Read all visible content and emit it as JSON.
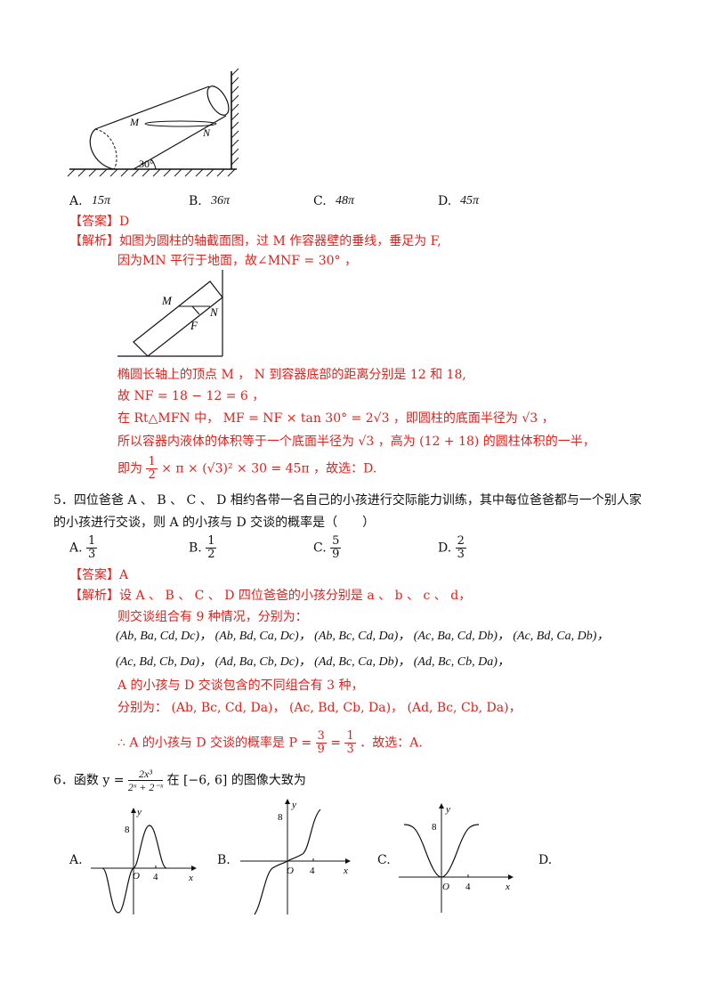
{
  "q4": {
    "options": [
      {
        "letter": "A.",
        "value": "15π"
      },
      {
        "letter": "B.",
        "value": "36π"
      },
      {
        "letter": "C.",
        "value": "48π"
      },
      {
        "letter": "D.",
        "value": "45π"
      }
    ],
    "answer_tag": "【答案】",
    "answer": "D",
    "analysis_tag": "【解析】",
    "lines": [
      "如图为圆柱的轴截面图，过 M 作容器壁的垂线，垂足为 F,",
      "因为MN 平行于地面，故∠MNF = 30° ，",
      "椭圆长轴上的顶点 M ， N 到容器底部的距离分别是 12 和 18,",
      "故 NF = 18 − 12 = 6 ，",
      "在 Rt△MFN 中， MF = NF × tan 30° = 2√3 ，即圆柱的底面半径为 √3 ，",
      "所以容器内液体的体积等于一个底面半径为 √3 ，高为 (12 + 18) 的圆柱体积的一半，",
      "即为",
      "× π × (√3)² × 30 = 45π ，故选：D."
    ],
    "half_num": "1",
    "half_den": "2",
    "fig1_labels": {
      "m": "M",
      "n": "N",
      "angle": "30°"
    },
    "fig2_labels": {
      "m": "M",
      "n": "N",
      "f": "F"
    }
  },
  "q5": {
    "stem1": "5．四位爸爸 A 、 B 、 C 、 D 相约各带一名自己的小孩进行交际能力训练，其中每位爸爸都与一个别人家",
    "stem2": "的小孩进行交谈，则 A 的小孩与 D 交谈的概率是（　　）",
    "options": [
      {
        "letter": "A.",
        "num": "1",
        "den": "3"
      },
      {
        "letter": "B.",
        "num": "1",
        "den": "2"
      },
      {
        "letter": "C.",
        "num": "5",
        "den": "9"
      },
      {
        "letter": "D.",
        "num": "2",
        "den": "3"
      }
    ],
    "answer_tag": "【答案】",
    "answer": "A",
    "analysis_tag": "【解析】",
    "line1": "设 A 、 B 、 C 、 D 四位爸爸的小孩分别是 a 、 b 、 c 、 d，",
    "line2": "则交谈组合有 9 种情况，分别为：",
    "combos_row1": "(Ab, Ba, Cd, Dc)， (Ab, Bd, Ca, Dc)， (Ab, Bc, Cd, Da)， (Ac, Ba, Cd, Db)， (Ac, Bd, Ca, Db)，",
    "combos_row2": "(Ac, Bd, Cb, Da)， (Ad, Ba, Cb, Dc)， (Ad, Bc, Ca, Db)， (Ad, Bc, Cb, Da)，",
    "line3": "A 的小孩与 D 交谈包含的不同组合有 3 种，",
    "line4": "分别为： (Ab, Bc, Cd, Da)， (Ac, Bd, Cb, Da)， (Ad, Bc, Cb, Da)，",
    "line5a": "∴ A 的小孩与 D 交谈的概率是 P =",
    "p_num1": "3",
    "p_den1": "9",
    "p_eq": "=",
    "p_num2": "1",
    "p_den2": "3",
    "line5b": "．故选：A."
  },
  "q6": {
    "stem_prefix": "6．函数 y =",
    "func_num": "2x³",
    "func_den": "2ˣ + 2⁻ˣ",
    "stem_suffix": "在 [−6, 6] 的图像大致为",
    "options": [
      "A.",
      "B.",
      "C.",
      "D."
    ],
    "axis": {
      "x": "x",
      "y": "y",
      "o": "O",
      "tick_x": "4",
      "tick_y": "8"
    }
  }
}
